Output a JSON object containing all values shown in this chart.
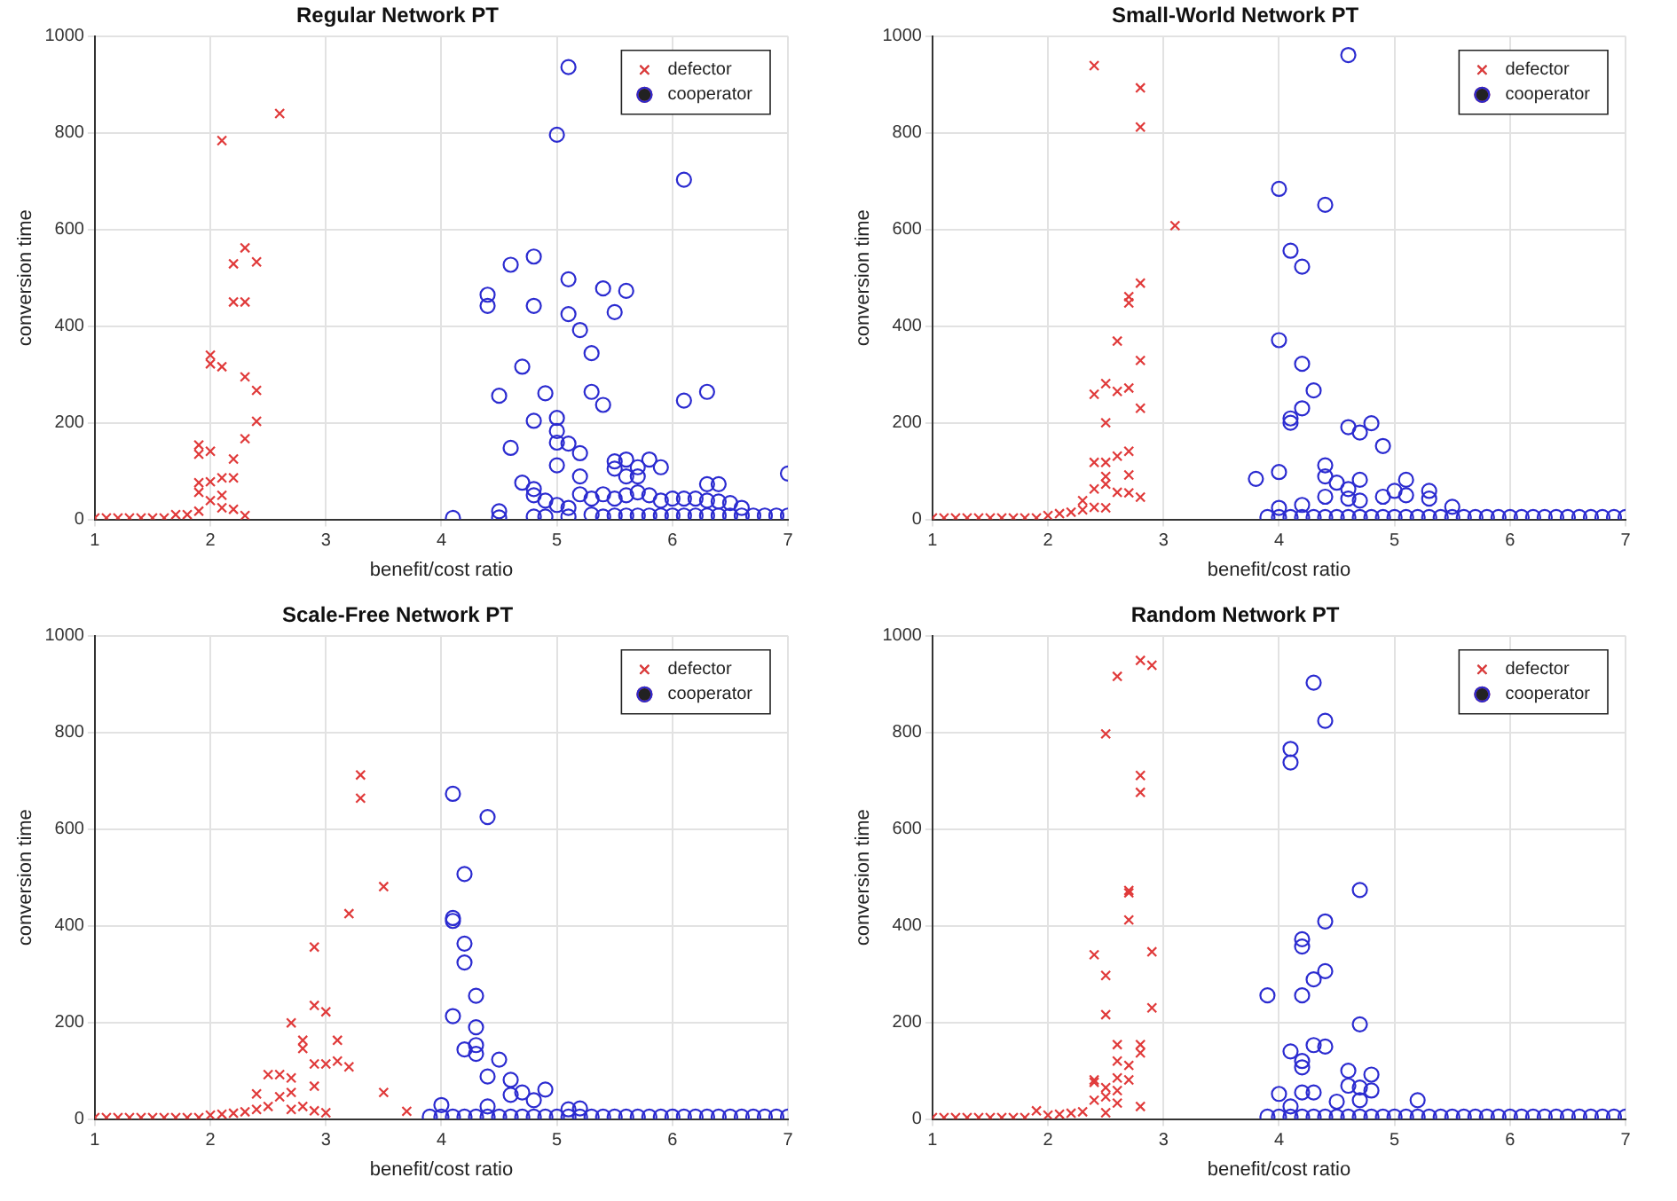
{
  "chart_data": [
    {
      "type": "scatter",
      "title": "Regular Network PT",
      "xlabel": "benefit/cost ratio",
      "ylabel": "conversion time",
      "xlim": [
        1,
        7
      ],
      "xticks": [
        1,
        2,
        3,
        4,
        5,
        6,
        7
      ],
      "ylim": [
        0,
        1000
      ],
      "yticks": [
        0,
        200,
        400,
        600,
        800,
        1000
      ],
      "grid": true,
      "legend": "top right",
      "series": [
        {
          "name": "defector",
          "color": "#e03a3a",
          "marker": "cross",
          "x": [
            1,
            1.1,
            1.2,
            1.3,
            1.4,
            1.5,
            1.6,
            1.7,
            1.8,
            1.9,
            1.9,
            1.9,
            1.9,
            1.9,
            2,
            2,
            2,
            2,
            2,
            2.1,
            2.1,
            2.1,
            2.1,
            2.1,
            2.2,
            2.2,
            2.2,
            2.2,
            2.2,
            2.3,
            2.3,
            2.3,
            2.3,
            2.3,
            2.4,
            2.4,
            2.4,
            2.6
          ],
          "values": [
            3,
            3,
            3,
            3,
            3,
            3,
            3,
            10,
            10,
            17,
            56,
            76,
            135,
            154,
            39,
            78,
            141,
            322,
            340,
            24,
            50,
            86,
            316,
            784,
            21,
            86,
            125,
            450,
            529,
            8,
            167,
            295,
            450,
            562,
            203,
            267,
            533,
            840
          ]
        },
        {
          "name": "cooperator",
          "color": "#2b2bd0",
          "marker": "circle",
          "x": [
            4.1,
            4.4,
            4.4,
            4.5,
            4.5,
            4.5,
            4.6,
            4.6,
            4.7,
            4.7,
            4.8,
            4.8,
            4.8,
            4.8,
            4.8,
            4.8,
            4.9,
            4.9,
            4.9,
            5,
            5,
            5,
            5,
            5,
            5,
            5.1,
            5.1,
            5.1,
            5.1,
            5.1,
            5.1,
            5.2,
            5.2,
            5.2,
            5.2,
            5.3,
            5.3,
            5.3,
            5.3,
            5.4,
            5.4,
            5.4,
            5.4,
            5.5,
            5.5,
            5.5,
            5.5,
            5.5,
            5.6,
            5.6,
            5.6,
            5.6,
            5.6,
            5.7,
            5.7,
            5.7,
            5.7,
            5.8,
            5.8,
            5.8,
            5.9,
            5.9,
            5.9,
            6,
            6,
            6.1,
            6.1,
            6.1,
            6.1,
            6.2,
            6.2,
            6.3,
            6.3,
            6.3,
            6.3,
            6.4,
            6.4,
            6.4,
            6.5,
            6.5,
            6.6,
            6.6,
            6.7,
            6.8,
            6.9,
            7,
            7
          ],
          "values": [
            3,
            442,
            465,
            4,
            17,
            256,
            148,
            527,
            76,
            316,
            6,
            50,
            63,
            204,
            442,
            544,
            6,
            39,
            261,
            30,
            112,
            159,
            183,
            210,
            796,
            6,
            24,
            157,
            425,
            497,
            936,
            52,
            89,
            137,
            392,
            10,
            43,
            264,
            344,
            6,
            52,
            237,
            478,
            8,
            43,
            105,
            120,
            429,
            8,
            50,
            89,
            124,
            473,
            8,
            56,
            89,
            108,
            8,
            50,
            124,
            8,
            39,
            108,
            8,
            43,
            8,
            43,
            246,
            703,
            8,
            43,
            8,
            39,
            73,
            264,
            8,
            37,
            73,
            8,
            34,
            8,
            24,
            8,
            8,
            8,
            8,
            95
          ]
        }
      ]
    },
    {
      "type": "scatter",
      "title": "Small-World Network PT",
      "xlabel": "benefit/cost ratio",
      "ylabel": "conversion time",
      "xlim": [
        1,
        7
      ],
      "xticks": [
        1,
        2,
        3,
        4,
        5,
        6,
        7
      ],
      "ylim": [
        0,
        1000
      ],
      "yticks": [
        0,
        200,
        400,
        600,
        800,
        1000
      ],
      "grid": true,
      "legend": "top right",
      "series": [
        {
          "name": "defector",
          "color": "#e03a3a",
          "marker": "cross",
          "x": [
            1,
            1.1,
            1.2,
            1.3,
            1.4,
            1.5,
            1.6,
            1.7,
            1.8,
            1.9,
            2,
            2.1,
            2.2,
            2.3,
            2.3,
            2.4,
            2.4,
            2.4,
            2.4,
            2.4,
            2.5,
            2.5,
            2.5,
            2.5,
            2.5,
            2.5,
            2.6,
            2.6,
            2.6,
            2.6,
            2.7,
            2.7,
            2.7,
            2.7,
            2.7,
            2.7,
            2.8,
            2.8,
            2.8,
            2.8,
            2.8,
            2.8,
            3.1
          ],
          "values": [
            3,
            3,
            3,
            3,
            3,
            3,
            3,
            3,
            3,
            3,
            8,
            12,
            15,
            20,
            39,
            25,
            63,
            118,
            259,
            939,
            24,
            73,
            89,
            118,
            200,
            281,
            56,
            131,
            265,
            369,
            55,
            92,
            141,
            272,
            448,
            461,
            46,
            230,
            329,
            489,
            812,
            893,
            608
          ]
        },
        {
          "name": "cooperator",
          "color": "#2b2bd0",
          "marker": "circle",
          "x": [
            3.8,
            3.9,
            4,
            4,
            4,
            4,
            4,
            4.1,
            4.1,
            4.1,
            4.1,
            4.2,
            4.2,
            4.2,
            4.2,
            4.2,
            4.3,
            4.3,
            4.4,
            4.4,
            4.4,
            4.4,
            4.4,
            4.5,
            4.5,
            4.6,
            4.6,
            4.6,
            4.6,
            4.6,
            4.7,
            4.7,
            4.7,
            4.7,
            4.8,
            4.8,
            4.9,
            4.9,
            4.9,
            5,
            5,
            5.1,
            5.1,
            5.1,
            5.2,
            5.3,
            5.3,
            5.3,
            5.4,
            5.5,
            5.5,
            5.6,
            5.7,
            5.8,
            5.9,
            6,
            6.1,
            6.2,
            6.3,
            6.4,
            6.5,
            6.6,
            6.7,
            6.8,
            6.9,
            7
          ],
          "values": [
            84,
            5,
            5,
            24,
            98,
            371,
            684,
            5,
            200,
            209,
            556,
            5,
            30,
            230,
            322,
            523,
            5,
            267,
            5,
            47,
            89,
            112,
            651,
            5,
            76,
            5,
            43,
            63,
            191,
            961,
            5,
            39,
            82,
            180,
            5,
            199,
            5,
            47,
            152,
            5,
            59,
            5,
            50,
            82,
            5,
            5,
            43,
            59,
            5,
            5,
            26,
            5,
            5,
            5,
            5,
            5,
            5,
            5,
            5,
            5,
            5,
            5,
            5,
            5,
            5,
            5
          ]
        }
      ]
    },
    {
      "type": "scatter",
      "title": "Scale-Free Network PT",
      "xlabel": "benefit/cost ratio",
      "ylabel": "conversion time",
      "xlim": [
        1,
        7
      ],
      "xticks": [
        1,
        2,
        3,
        4,
        5,
        6,
        7
      ],
      "ylim": [
        0,
        1000
      ],
      "yticks": [
        0,
        200,
        400,
        600,
        800,
        1000
      ],
      "grid": true,
      "legend": "top right",
      "series": [
        {
          "name": "defector",
          "color": "#e03a3a",
          "marker": "cross",
          "x": [
            1,
            1.1,
            1.2,
            1.3,
            1.4,
            1.5,
            1.6,
            1.7,
            1.8,
            1.9,
            2,
            2.1,
            2.2,
            2.3,
            2.4,
            2.4,
            2.5,
            2.5,
            2.6,
            2.6,
            2.7,
            2.7,
            2.7,
            2.7,
            2.8,
            2.8,
            2.8,
            2.9,
            2.9,
            2.9,
            2.9,
            2.9,
            3,
            3,
            3,
            3.1,
            3.1,
            3.2,
            3.2,
            3.3,
            3.3,
            3.5,
            3.5,
            3.7
          ],
          "values": [
            3,
            3,
            3,
            3,
            3,
            3,
            3,
            3,
            3,
            3,
            8,
            10,
            12,
            15,
            20,
            52,
            26,
            92,
            46,
            92,
            20,
            55,
            85,
            199,
            26,
            146,
            163,
            17,
            68,
            114,
            235,
            356,
            13,
            114,
            222,
            120,
            163,
            108,
            425,
            664,
            712,
            55,
            481,
            16
          ]
        },
        {
          "name": "cooperator",
          "color": "#2b2bd0",
          "marker": "circle",
          "x": [
            3.9,
            4,
            4,
            4.1,
            4.1,
            4.1,
            4.1,
            4.1,
            4.2,
            4.2,
            4.2,
            4.2,
            4.2,
            4.3,
            4.3,
            4.3,
            4.3,
            4.3,
            4.4,
            4.4,
            4.4,
            4.4,
            4.5,
            4.5,
            4.6,
            4.6,
            4.6,
            4.7,
            4.7,
            4.8,
            4.8,
            4.9,
            4.9,
            5,
            5.1,
            5.1,
            5.2,
            5.2,
            5.3,
            5.4,
            5.5,
            5.6,
            5.7,
            5.8,
            5.9,
            6,
            6.1,
            6.2,
            6.3,
            6.4,
            6.5,
            6.6,
            6.7,
            6.8,
            6.9,
            7
          ],
          "values": [
            5,
            5,
            29,
            5,
            213,
            410,
            416,
            673,
            5,
            144,
            324,
            363,
            507,
            5,
            135,
            153,
            190,
            255,
            5,
            26,
            88,
            625,
            5,
            123,
            5,
            50,
            81,
            5,
            55,
            5,
            39,
            5,
            61,
            5,
            5,
            20,
            5,
            22,
            5,
            5,
            5,
            5,
            5,
            5,
            5,
            5,
            5,
            5,
            5,
            5,
            5,
            5,
            5,
            5,
            5,
            5
          ]
        }
      ]
    },
    {
      "type": "scatter",
      "title": "Random Network PT",
      "xlabel": "benefit/cost ratio",
      "ylabel": "conversion time",
      "xlim": [
        1,
        7
      ],
      "xticks": [
        1,
        2,
        3,
        4,
        5,
        6,
        7
      ],
      "ylim": [
        0,
        1000
      ],
      "yticks": [
        0,
        200,
        400,
        600,
        800,
        1000
      ],
      "grid": true,
      "legend": "top right",
      "series": [
        {
          "name": "defector",
          "color": "#e03a3a",
          "marker": "cross",
          "x": [
            1,
            1.1,
            1.2,
            1.3,
            1.4,
            1.5,
            1.6,
            1.7,
            1.8,
            1.9,
            2,
            2.1,
            2.2,
            2.3,
            2.4,
            2.4,
            2.4,
            2.4,
            2.5,
            2.5,
            2.5,
            2.5,
            2.5,
            2.5,
            2.6,
            2.6,
            2.6,
            2.6,
            2.6,
            2.6,
            2.7,
            2.7,
            2.7,
            2.7,
            2.7,
            2.8,
            2.8,
            2.8,
            2.8,
            2.8,
            2.8,
            2.9,
            2.9,
            2.9
          ],
          "values": [
            3,
            3,
            3,
            3,
            3,
            3,
            3,
            3,
            3,
            17,
            8,
            10,
            12,
            15,
            39,
            76,
            81,
            340,
            13,
            46,
            65,
            216,
            297,
            797,
            33,
            59,
            85,
            120,
            154,
            916,
            81,
            111,
            412,
            468,
            473,
            26,
            137,
            154,
            676,
            711,
            949,
            230,
            346,
            939
          ]
        },
        {
          "name": "cooperator",
          "color": "#2b2bd0",
          "marker": "circle",
          "x": [
            3.9,
            3.9,
            4,
            4,
            4.1,
            4.1,
            4.1,
            4.1,
            4.1,
            4.2,
            4.2,
            4.2,
            4.2,
            4.2,
            4.2,
            4.2,
            4.3,
            4.3,
            4.3,
            4.3,
            4.3,
            4.4,
            4.4,
            4.4,
            4.4,
            4.4,
            4.5,
            4.5,
            4.6,
            4.6,
            4.6,
            4.7,
            4.7,
            4.7,
            4.7,
            4.7,
            4.8,
            4.8,
            4.8,
            4.9,
            5,
            5.1,
            5.2,
            5.2,
            5.3,
            5.4,
            5.5,
            5.6,
            5.7,
            5.8,
            5.9,
            6,
            6.1,
            6.2,
            6.3,
            6.4,
            6.5,
            6.6,
            6.7,
            6.8,
            6.9,
            7
          ],
          "values": [
            5,
            256,
            5,
            52,
            5,
            26,
            140,
            738,
            766,
            5,
            55,
            107,
            120,
            256,
            357,
            372,
            5,
            55,
            153,
            289,
            903,
            5,
            150,
            306,
            409,
            824,
            5,
            36,
            5,
            69,
            100,
            5,
            39,
            65,
            196,
            474,
            5,
            59,
            92,
            5,
            5,
            5,
            5,
            39,
            5,
            5,
            5,
            5,
            5,
            5,
            5,
            5,
            5,
            5,
            5,
            5,
            5,
            5,
            5,
            5,
            5,
            5
          ]
        }
      ]
    }
  ]
}
